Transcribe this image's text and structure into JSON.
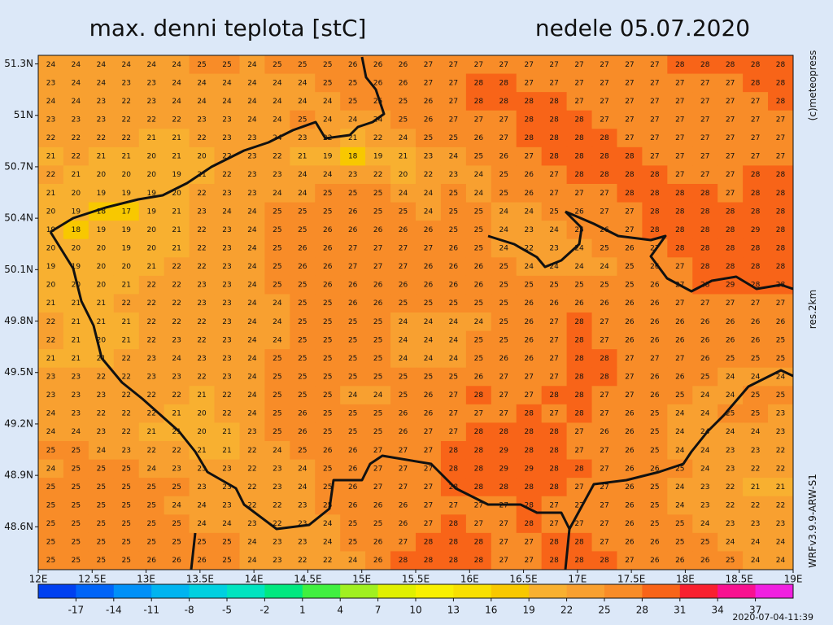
{
  "header": {
    "title": "max. denni teplota [stC]",
    "date": "nedele 05.07.2020"
  },
  "side_texts": {
    "copyright": "(c)meteopress",
    "resolution": "res.2km",
    "model": "WRFv3.9.9-ARW-S1"
  },
  "timestamp": "2020-07-04-11:39",
  "map": {
    "lat_range": [
      48.35,
      51.35
    ],
    "lon_range": [
      12,
      19
    ],
    "lat_ticks": [
      {
        "value": 51.3,
        "label": "51.3N"
      },
      {
        "value": 51,
        "label": "51N"
      },
      {
        "value": 50.7,
        "label": "50.7N"
      },
      {
        "value": 50.4,
        "label": "50.4N"
      },
      {
        "value": 50.1,
        "label": "50.1N"
      },
      {
        "value": 49.8,
        "label": "49.8N"
      },
      {
        "value": 49.5,
        "label": "49.5N"
      },
      {
        "value": 49.2,
        "label": "49.2N"
      },
      {
        "value": 48.9,
        "label": "48.9N"
      },
      {
        "value": 48.6,
        "label": "48.6N"
      }
    ],
    "lon_ticks": [
      {
        "value": 12,
        "label": "12E"
      },
      {
        "value": 12.5,
        "label": "12.5E"
      },
      {
        "value": 13,
        "label": "13E"
      },
      {
        "value": 13.5,
        "label": "13.5E"
      },
      {
        "value": 14,
        "label": "14E"
      },
      {
        "value": 14.5,
        "label": "14.5E"
      },
      {
        "value": 15,
        "label": "15E"
      },
      {
        "value": 15.5,
        "label": "15.5E"
      },
      {
        "value": 16,
        "label": "16E"
      },
      {
        "value": 16.5,
        "label": "16.5E"
      },
      {
        "value": 17,
        "label": "17E"
      },
      {
        "value": 17.5,
        "label": "17.5E"
      },
      {
        "value": 18,
        "label": "18E"
      },
      {
        "value": 18.5,
        "label": "18.5E"
      },
      {
        "value": 19,
        "label": "19E"
      }
    ]
  },
  "grid": {
    "rows": [
      [
        24,
        24,
        24,
        24,
        24,
        24,
        25,
        25,
        24,
        25,
        25,
        25,
        26,
        26,
        26,
        27,
        27,
        27,
        27,
        27,
        27,
        27,
        27,
        27,
        27,
        28,
        28,
        28,
        28,
        28
      ],
      [
        23,
        24,
        24,
        23,
        23,
        24,
        24,
        24,
        24,
        24,
        24,
        25,
        25,
        26,
        26,
        27,
        27,
        28,
        28,
        27,
        27,
        27,
        27,
        27,
        27,
        27,
        27,
        27,
        28,
        28
      ],
      [
        24,
        24,
        23,
        22,
        23,
        24,
        24,
        24,
        24,
        24,
        24,
        24,
        25,
        25,
        25,
        26,
        27,
        28,
        28,
        28,
        28,
        27,
        27,
        27,
        27,
        27,
        27,
        27,
        27,
        28
      ],
      [
        23,
        23,
        23,
        22,
        22,
        22,
        23,
        23,
        24,
        24,
        25,
        24,
        24,
        24,
        25,
        26,
        27,
        27,
        27,
        28,
        28,
        28,
        27,
        27,
        27,
        27,
        27,
        27,
        27,
        27
      ],
      [
        22,
        22,
        22,
        22,
        21,
        21,
        22,
        23,
        23,
        24,
        23,
        22,
        21,
        22,
        24,
        25,
        25,
        26,
        27,
        28,
        28,
        28,
        28,
        27,
        27,
        27,
        27,
        27,
        27,
        27
      ],
      [
        21,
        22,
        21,
        21,
        20,
        21,
        20,
        22,
        23,
        22,
        21,
        19,
        18,
        19,
        21,
        23,
        24,
        25,
        26,
        27,
        28,
        28,
        28,
        28,
        27,
        27,
        27,
        27,
        27,
        27
      ],
      [
        22,
        21,
        20,
        20,
        20,
        19,
        21,
        22,
        23,
        23,
        24,
        24,
        23,
        22,
        20,
        22,
        23,
        24,
        25,
        26,
        27,
        28,
        28,
        28,
        28,
        27,
        27,
        27,
        28,
        28
      ],
      [
        21,
        20,
        19,
        19,
        19,
        20,
        22,
        23,
        23,
        24,
        24,
        25,
        25,
        25,
        24,
        24,
        25,
        24,
        25,
        26,
        27,
        27,
        27,
        28,
        28,
        28,
        28,
        27,
        28,
        28
      ],
      [
        20,
        19,
        18,
        17,
        19,
        21,
        23,
        24,
        24,
        25,
        25,
        25,
        26,
        25,
        25,
        24,
        25,
        25,
        24,
        24,
        25,
        26,
        27,
        27,
        28,
        28,
        28,
        28,
        28,
        28
      ],
      [
        19,
        18,
        19,
        19,
        20,
        21,
        22,
        23,
        24,
        25,
        25,
        26,
        26,
        26,
        26,
        26,
        25,
        25,
        24,
        23,
        24,
        25,
        26,
        27,
        28,
        28,
        28,
        28,
        29,
        28
      ],
      [
        20,
        20,
        20,
        19,
        20,
        21,
        22,
        23,
        24,
        25,
        26,
        26,
        27,
        27,
        27,
        27,
        26,
        25,
        24,
        22,
        23,
        24,
        25,
        26,
        27,
        28,
        28,
        28,
        28,
        28
      ],
      [
        19,
        19,
        20,
        20,
        21,
        22,
        22,
        23,
        24,
        25,
        26,
        26,
        27,
        27,
        27,
        26,
        26,
        26,
        25,
        24,
        24,
        24,
        24,
        25,
        26,
        27,
        28,
        28,
        28,
        28
      ],
      [
        20,
        20,
        20,
        21,
        22,
        22,
        23,
        23,
        24,
        25,
        25,
        26,
        26,
        26,
        26,
        26,
        26,
        26,
        25,
        25,
        25,
        25,
        25,
        25,
        26,
        27,
        28,
        29,
        28,
        28
      ],
      [
        21,
        21,
        21,
        22,
        22,
        22,
        23,
        23,
        24,
        24,
        25,
        25,
        26,
        26,
        25,
        25,
        25,
        25,
        25,
        26,
        26,
        26,
        26,
        26,
        26,
        27,
        27,
        27,
        27,
        27
      ],
      [
        22,
        21,
        21,
        21,
        22,
        22,
        22,
        23,
        24,
        24,
        25,
        25,
        25,
        25,
        24,
        24,
        24,
        24,
        25,
        26,
        27,
        28,
        27,
        26,
        26,
        26,
        26,
        26,
        26,
        26
      ],
      [
        22,
        21,
        20,
        21,
        22,
        23,
        22,
        23,
        24,
        24,
        25,
        25,
        25,
        25,
        24,
        24,
        24,
        25,
        25,
        26,
        27,
        28,
        27,
        26,
        26,
        26,
        26,
        26,
        26,
        25
      ],
      [
        21,
        21,
        21,
        22,
        23,
        24,
        23,
        23,
        24,
        25,
        25,
        25,
        25,
        25,
        24,
        24,
        24,
        25,
        26,
        26,
        27,
        28,
        28,
        27,
        27,
        27,
        26,
        25,
        25,
        25
      ],
      [
        23,
        23,
        22,
        22,
        23,
        23,
        22,
        23,
        24,
        25,
        25,
        25,
        25,
        25,
        25,
        25,
        25,
        26,
        27,
        27,
        27,
        28,
        28,
        27,
        26,
        26,
        25,
        24,
        24,
        24
      ],
      [
        23,
        23,
        23,
        22,
        22,
        22,
        21,
        22,
        24,
        25,
        25,
        25,
        24,
        24,
        25,
        26,
        27,
        28,
        27,
        27,
        28,
        28,
        27,
        27,
        26,
        25,
        24,
        24,
        25,
        25
      ],
      [
        24,
        23,
        22,
        22,
        22,
        21,
        20,
        22,
        24,
        25,
        26,
        25,
        25,
        25,
        26,
        26,
        27,
        27,
        27,
        28,
        27,
        28,
        27,
        26,
        25,
        24,
        24,
        25,
        25,
        23
      ],
      [
        24,
        24,
        23,
        22,
        21,
        21,
        20,
        21,
        23,
        25,
        26,
        25,
        25,
        25,
        26,
        27,
        27,
        28,
        28,
        28,
        28,
        27,
        26,
        26,
        25,
        24,
        24,
        24,
        24,
        23
      ],
      [
        25,
        25,
        24,
        23,
        22,
        22,
        21,
        21,
        22,
        24,
        25,
        26,
        26,
        27,
        27,
        27,
        28,
        28,
        29,
        28,
        28,
        27,
        27,
        26,
        25,
        24,
        24,
        23,
        23,
        22
      ],
      [
        24,
        25,
        25,
        25,
        24,
        23,
        23,
        23,
        22,
        23,
        24,
        25,
        26,
        27,
        27,
        27,
        28,
        28,
        29,
        29,
        28,
        28,
        27,
        26,
        26,
        25,
        24,
        23,
        22,
        22
      ],
      [
        25,
        25,
        25,
        25,
        25,
        25,
        23,
        23,
        22,
        23,
        24,
        25,
        26,
        27,
        27,
        27,
        28,
        28,
        28,
        28,
        28,
        27,
        27,
        26,
        25,
        24,
        23,
        22,
        21,
        21
      ],
      [
        25,
        25,
        25,
        25,
        25,
        24,
        24,
        23,
        22,
        22,
        23,
        25,
        26,
        26,
        26,
        27,
        27,
        27,
        27,
        28,
        27,
        27,
        27,
        26,
        25,
        24,
        23,
        22,
        22,
        22
      ],
      [
        25,
        25,
        25,
        25,
        25,
        25,
        24,
        24,
        23,
        22,
        23,
        24,
        25,
        25,
        26,
        27,
        28,
        27,
        27,
        28,
        27,
        27,
        27,
        26,
        25,
        25,
        24,
        23,
        23,
        23
      ],
      [
        25,
        25,
        25,
        25,
        25,
        25,
        25,
        25,
        24,
        23,
        23,
        24,
        25,
        26,
        27,
        28,
        28,
        28,
        27,
        27,
        28,
        28,
        27,
        26,
        26,
        25,
        25,
        24,
        24,
        24
      ],
      [
        25,
        25,
        25,
        25,
        26,
        26,
        26,
        25,
        24,
        23,
        22,
        22,
        24,
        26,
        28,
        28,
        28,
        28,
        27,
        27,
        28,
        28,
        28,
        27,
        26,
        26,
        26,
        25,
        24,
        24
      ]
    ]
  },
  "colorbar": {
    "ticks": [
      -17,
      -14,
      -11,
      -8,
      -5,
      -2,
      1,
      4,
      7,
      10,
      13,
      16,
      19,
      22,
      25,
      28,
      31,
      34,
      37
    ],
    "colors": [
      "#0040f0",
      "#0064f8",
      "#0090f8",
      "#00b4f0",
      "#00d0e0",
      "#00e4c0",
      "#00e880",
      "#40f040",
      "#a0f020",
      "#e0f000",
      "#f8f000",
      "#f8e000",
      "#f8c800",
      "#f8b030",
      "#f8a030",
      "#f88c28",
      "#f86418",
      "#f82030",
      "#f81090",
      "#f020e0"
    ]
  }
}
